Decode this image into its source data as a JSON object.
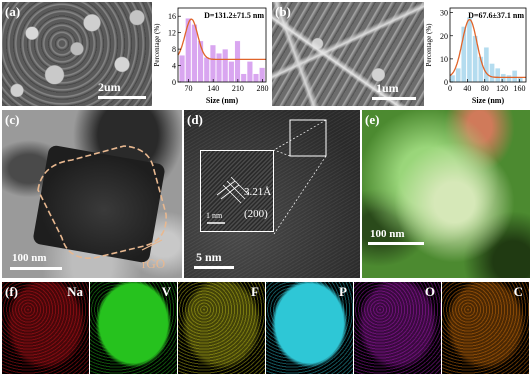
{
  "panels": {
    "a": {
      "label": "(a)",
      "scale": "2um"
    },
    "b": {
      "label": "(b)",
      "scale": "1um"
    },
    "c": {
      "label": "(c)",
      "scale": "100 nm",
      "annotation": "rGO"
    },
    "d": {
      "label": "(d)",
      "scale": "5 nm",
      "inset_scale": "1 nm",
      "lattice": "3.21Å",
      "plane": "(200)"
    },
    "e": {
      "label": "(e)",
      "scale": "100 nm"
    },
    "f": {
      "label": "(f)"
    }
  },
  "maps": [
    {
      "element": "Na",
      "color": "#d4141c"
    },
    {
      "element": "V",
      "color": "#26c21e"
    },
    {
      "element": "F",
      "color": "#c8c81a"
    },
    {
      "element": "P",
      "color": "#2ec7d6"
    },
    {
      "element": "O",
      "color": "#b01cc0"
    },
    {
      "element": "C",
      "color": "#e0780a"
    }
  ],
  "chart_data": [
    {
      "type": "bar",
      "annotation": "D=131.2±71.5 nm",
      "xlabel": "Size (nm)",
      "ylabel": "Percentage (%)",
      "xlim": [
        40,
        290
      ],
      "ylim": [
        0,
        18
      ],
      "xticks": [
        70,
        140,
        210,
        280
      ],
      "yticks": [
        0,
        4,
        8,
        12,
        16
      ],
      "bar_width": 17.5,
      "x": [
        52.5,
        70,
        87.5,
        105,
        122.5,
        140,
        157.5,
        175,
        192.5,
        210,
        227.5,
        245,
        262.5,
        280
      ],
      "values": [
        6.5,
        15.5,
        14,
        10,
        6,
        9,
        7,
        8,
        5,
        10,
        2,
        5,
        2,
        3.5
      ],
      "fit_curve": {
        "peak": 15.3,
        "center": 78,
        "sigma": 18,
        "baseline": 5.5
      },
      "bar_color": "#d9a6f0",
      "fit_color": "#e0642a"
    },
    {
      "type": "bar",
      "annotation": "D=67.6±37.1 nm",
      "xlabel": "Size (nm)",
      "ylabel": "Percentage (%)",
      "xlim": [
        0,
        175
      ],
      "ylim": [
        0,
        32
      ],
      "xticks": [
        0,
        40,
        80,
        120,
        160
      ],
      "yticks": [
        0,
        10,
        20,
        30
      ],
      "bar_width": 13,
      "x": [
        6.5,
        19.5,
        32.5,
        45.5,
        58.5,
        71.5,
        84.5,
        97.5,
        110.5,
        123.5,
        136.5,
        149.5,
        162.5
      ],
      "values": [
        3,
        6,
        24,
        28,
        20,
        11,
        15,
        8,
        6,
        3.5,
        3,
        5,
        2
      ],
      "fit_curve": {
        "peak": 27,
        "center": 45,
        "sigma": 17,
        "baseline": 2
      },
      "bar_color": "#b4dcef",
      "fit_color": "#e0642a"
    }
  ]
}
